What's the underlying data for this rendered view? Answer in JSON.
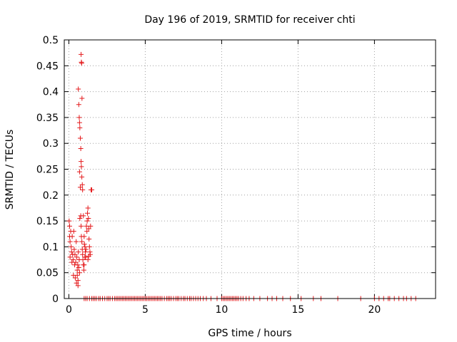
{
  "chart_data": {
    "type": "scatter",
    "title": "Day 196 of 2019, SRMTID for receiver chti",
    "xlabel": "GPS time / hours",
    "ylabel": "SRMTID / TECUs",
    "xlim": [
      -0.3,
      24.0
    ],
    "ylim": [
      0,
      0.5
    ],
    "grid": true,
    "marker": "plus",
    "colors": {
      "points": "#e41a1c",
      "grid": "#a0a0a0",
      "axes": "#000000"
    },
    "x_ticks": [
      0,
      5,
      10,
      15,
      20
    ],
    "x_tick_labels": [
      "0",
      "5",
      "10",
      "15",
      "20"
    ],
    "y_ticks": [
      0,
      0.05,
      0.1,
      0.15,
      0.2,
      0.25,
      0.3,
      0.35,
      0.4,
      0.45,
      0.5
    ],
    "y_tick_labels": [
      "0",
      "0.05",
      "0.1",
      "0.15",
      "0.2",
      "0.25",
      "0.3",
      "0.35",
      "0.4",
      "0.45",
      "0.5"
    ],
    "points": [
      [
        0.02,
        0.15
      ],
      [
        0.05,
        0.14
      ],
      [
        0.05,
        0.12
      ],
      [
        0.08,
        0.11
      ],
      [
        0.08,
        0.08
      ],
      [
        0.12,
        0.13
      ],
      [
        0.15,
        0.1
      ],
      [
        0.18,
        0.09
      ],
      [
        0.2,
        0.07
      ],
      [
        0.22,
        0.12
      ],
      [
        0.25,
        0.085
      ],
      [
        0.28,
        0.075
      ],
      [
        0.3,
        0.045
      ],
      [
        0.32,
        0.13
      ],
      [
        0.35,
        0.095
      ],
      [
        0.38,
        0.065
      ],
      [
        0.4,
        0.085
      ],
      [
        0.42,
        0.04
      ],
      [
        0.45,
        0.07
      ],
      [
        0.48,
        0.11
      ],
      [
        0.5,
        0.03
      ],
      [
        0.52,
        0.08
      ],
      [
        0.55,
        0.045
      ],
      [
        0.58,
        0.065
      ],
      [
        0.6,
        0.035
      ],
      [
        0.62,
        0.09
      ],
      [
        0.65,
        0.06
      ],
      [
        0.68,
        0.075
      ],
      [
        0.7,
        0.05
      ],
      [
        0.72,
        0.155
      ],
      [
        0.62,
        0.405
      ],
      [
        0.65,
        0.375
      ],
      [
        0.68,
        0.35
      ],
      [
        0.7,
        0.34
      ],
      [
        0.72,
        0.33
      ],
      [
        0.75,
        0.31
      ],
      [
        0.78,
        0.29
      ],
      [
        0.8,
        0.265
      ],
      [
        0.82,
        0.255
      ],
      [
        0.85,
        0.235
      ],
      [
        0.88,
        0.22
      ],
      [
        0.9,
        0.21
      ],
      [
        0.8,
        0.472
      ],
      [
        0.82,
        0.457
      ],
      [
        0.84,
        0.455
      ],
      [
        0.86,
        0.387
      ],
      [
        0.7,
        0.245
      ],
      [
        0.75,
        0.215
      ],
      [
        0.78,
        0.16
      ],
      [
        0.8,
        0.14
      ],
      [
        0.82,
        0.12
      ],
      [
        0.85,
        0.11
      ],
      [
        0.88,
        0.095
      ],
      [
        0.9,
        0.085
      ],
      [
        0.92,
        0.075
      ],
      [
        0.95,
        0.065
      ],
      [
        0.98,
        0.055
      ],
      [
        1.0,
        0.12
      ],
      [
        1.02,
        0.105
      ],
      [
        1.05,
        0.1
      ],
      [
        1.08,
        0.09
      ],
      [
        1.1,
        0.08
      ],
      [
        1.12,
        0.095
      ],
      [
        1.15,
        0.14
      ],
      [
        1.18,
        0.13
      ],
      [
        1.2,
        0.15
      ],
      [
        1.22,
        0.165
      ],
      [
        1.25,
        0.175
      ],
      [
        1.28,
        0.155
      ],
      [
        1.3,
        0.135
      ],
      [
        1.32,
        0.115
      ],
      [
        1.35,
        0.1
      ],
      [
        1.38,
        0.09
      ],
      [
        1.4,
        0.085
      ],
      [
        1.42,
        0.14
      ],
      [
        1.45,
        0.21
      ],
      [
        1.5,
        0.21
      ],
      [
        1.25,
        0.075
      ],
      [
        1.3,
        0.082
      ],
      [
        0.95,
        0.16
      ],
      [
        1.0,
        0.065
      ],
      [
        1.05,
        0.08
      ],
      [
        0.6,
        0.025
      ],
      [
        0.55,
        0.055
      ]
    ],
    "zero_points": [
      1.0,
      1.1,
      1.2,
      1.35,
      1.5,
      1.6,
      1.7,
      1.8,
      1.95,
      2.05,
      2.2,
      2.35,
      2.5,
      2.6,
      2.7,
      2.85,
      3.0,
      3.1,
      3.2,
      3.3,
      3.4,
      3.5,
      3.6,
      3.7,
      3.8,
      3.9,
      4.0,
      4.1,
      4.2,
      4.3,
      4.4,
      4.5,
      4.6,
      4.7,
      4.8,
      4.9,
      5.0,
      5.1,
      5.2,
      5.3,
      5.4,
      5.5,
      5.6,
      5.7,
      5.8,
      5.9,
      6.0,
      6.1,
      6.25,
      6.4,
      6.5,
      6.6,
      6.7,
      6.85,
      7.0,
      7.1,
      7.2,
      7.35,
      7.5,
      7.6,
      7.75,
      7.9,
      8.0,
      8.15,
      8.3,
      8.45,
      8.6,
      8.8,
      9.0,
      9.3,
      9.7,
      10.0,
      10.1,
      10.2,
      10.3,
      10.4,
      10.5,
      10.6,
      10.7,
      10.8,
      10.9,
      11.0,
      11.1,
      11.25,
      11.4,
      11.6,
      11.8,
      12.1,
      12.5,
      13.0,
      13.3,
      13.6,
      14.0,
      14.5,
      15.2,
      16.0,
      16.5,
      17.6,
      19.1,
      20.0,
      20.3,
      20.6,
      20.9,
      21.0,
      21.3,
      21.6,
      21.9,
      22.1,
      22.4,
      22.7
    ]
  }
}
